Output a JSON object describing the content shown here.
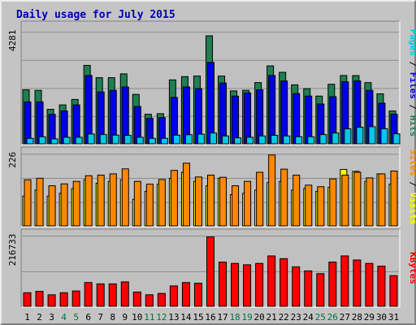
{
  "chart_data": {
    "title": "Daily usage for July 2015",
    "type": "bar",
    "days": [
      "1",
      "2",
      "3",
      "4",
      "5",
      "6",
      "7",
      "8",
      "9",
      "10",
      "11",
      "12",
      "13",
      "14",
      "15",
      "16",
      "17",
      "18",
      "19",
      "20",
      "21",
      "22",
      "23",
      "24",
      "25",
      "26",
      "27",
      "28",
      "29",
      "30",
      "31"
    ],
    "weekend_days": [
      "4",
      "5",
      "11",
      "12",
      "18",
      "19",
      "25",
      "26"
    ],
    "colors": {
      "hits": "#1e8050",
      "files": "#0000e6",
      "pages": "#00c8e6",
      "visits": "#ffff00",
      "sites": "#ff8800",
      "kbytes": "#ff0000",
      "weekday_label": "#000000",
      "weekend_label": "#007040",
      "panel_bg": "#c0c0c0",
      "frame_bg": "#c4c4c4"
    },
    "panels": [
      {
        "name": "hits-files-pages",
        "ymax": 4281,
        "ymax_label": "4281",
        "legend": [
          {
            "key": "pages",
            "label": "Pages"
          },
          {
            "key": "files",
            "label": "Files"
          },
          {
            "key": "hits",
            "label": "Hits"
          }
        ],
        "series": [
          {
            "key": "hits",
            "values": [
              2087,
              2066,
              1333,
              1504,
              1714,
              3032,
              2556,
              2556,
              2704,
              1910,
              1143,
              1165,
              2471,
              2597,
              2619,
              4174,
              2619,
              2044,
              2066,
              2366,
              3011,
              2763,
              2280,
              2131,
              1845,
              2301,
              2640,
              2637,
              2364,
              1932,
              1269
            ]
          },
          {
            "key": "files",
            "values": [
              1620,
              1620,
              1143,
              1269,
              1504,
              2640,
              2004,
              2066,
              2197,
              1441,
              985,
              1015,
              1794,
              2197,
              2131,
              3146,
              2350,
              1845,
              1967,
              2087,
              2640,
              2427,
              1940,
              1845,
              1538,
              1820,
              2398,
              2428,
              2066,
              1570,
              1142
            ]
          },
          {
            "key": "pages",
            "values": [
              211,
              274,
              190,
              253,
              253,
              380,
              357,
              337,
              328,
              253,
              211,
              211,
              337,
              352,
              373,
              418,
              304,
              232,
              253,
              304,
              328,
              304,
              274,
              274,
              357,
              418,
              580,
              642,
              663,
              580,
              387
            ]
          }
        ]
      },
      {
        "name": "visits-sites",
        "ymax": 226,
        "ymax_label": "226",
        "legend": [
          {
            "key": "sites",
            "label": "Sites"
          },
          {
            "key": "visits",
            "label": "Visits"
          }
        ],
        "series": [
          {
            "key": "sites",
            "values": [
              147,
              152,
              128,
              134,
              142,
              160,
              162,
              166,
              182,
              142,
              133,
              148,
              177,
              200,
              156,
              162,
              155,
              128,
              142,
              171,
              226,
              181,
              162,
              130,
              125,
              150,
              162,
              171,
              153,
              166,
              175
            ]
          },
          {
            "key": "visits",
            "values": [
              95,
              114,
              95,
              104,
              119,
              147,
              136,
              142,
              147,
              85,
              110,
              133,
              152,
              171,
              142,
              128,
              152,
              100,
              104,
              114,
              138,
              142,
              114,
              119,
              110,
              123,
              180,
              174,
              142,
              166,
              133
            ]
          }
        ]
      },
      {
        "name": "kbytes",
        "ymax": 216733,
        "ymax_label": "216733",
        "legend": [
          {
            "key": "kbytes",
            "label": "KBytes"
          }
        ],
        "series": [
          {
            "key": "kbytes",
            "values": [
              42500,
              46800,
              36100,
              42500,
              47900,
              74300,
              70100,
              70100,
              76400,
              44600,
              36100,
              40300,
              63700,
              74300,
              72200,
              216700,
              138300,
              134100,
              129800,
              134100,
              157500,
              148900,
              123500,
              110700,
              102200,
              138300,
              157500,
              144700,
              134100,
              125600,
              95800
            ]
          }
        ]
      }
    ]
  }
}
